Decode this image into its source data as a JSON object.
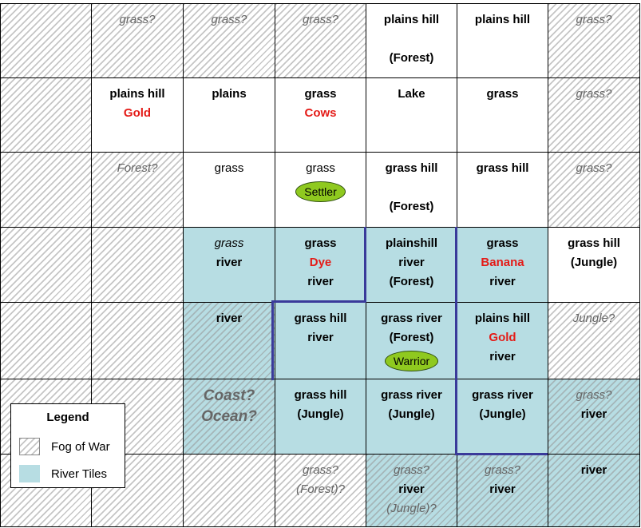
{
  "colors": {
    "river": "#b7dde3",
    "river_edge": "#3a3a9a",
    "resource": "#e41b17",
    "unit": "#8fc91f"
  },
  "grid": {
    "rows": [
      [
        {
          "fog": true,
          "river": false,
          "lines": []
        },
        {
          "fog": true,
          "river": false,
          "lines": [
            {
              "t": "grass?",
              "s": "fog"
            }
          ]
        },
        {
          "fog": true,
          "river": false,
          "lines": [
            {
              "t": "grass?",
              "s": "fog"
            }
          ]
        },
        {
          "fog": true,
          "river": false,
          "lines": [
            {
              "t": "grass?",
              "s": "fog"
            }
          ]
        },
        {
          "fog": false,
          "river": false,
          "lines": [
            {
              "t": "plains hill",
              "s": "b"
            },
            {
              "t": "",
              "s": "gap"
            },
            {
              "t": "(Forest)",
              "s": "b"
            }
          ]
        },
        {
          "fog": false,
          "river": false,
          "lines": [
            {
              "t": "plains hill",
              "s": "b"
            }
          ]
        },
        {
          "fog": true,
          "river": false,
          "lines": [
            {
              "t": "grass?",
              "s": "fog"
            }
          ]
        }
      ],
      [
        {
          "fog": true,
          "river": false,
          "lines": []
        },
        {
          "fog": false,
          "river": false,
          "lines": [
            {
              "t": "plains hill",
              "s": "b"
            },
            {
              "t": "Gold",
              "s": "red"
            }
          ]
        },
        {
          "fog": false,
          "river": false,
          "lines": [
            {
              "t": "plains",
              "s": "b"
            }
          ]
        },
        {
          "fog": false,
          "river": false,
          "lines": [
            {
              "t": "grass",
              "s": "b"
            },
            {
              "t": "Cows",
              "s": "red"
            }
          ]
        },
        {
          "fog": false,
          "river": false,
          "lines": [
            {
              "t": "Lake",
              "s": "b"
            }
          ]
        },
        {
          "fog": false,
          "river": false,
          "lines": [
            {
              "t": "grass",
              "s": "b"
            }
          ]
        },
        {
          "fog": true,
          "river": false,
          "lines": [
            {
              "t": "grass?",
              "s": "fog"
            }
          ]
        }
      ],
      [
        {
          "fog": true,
          "river": false,
          "lines": []
        },
        {
          "fog": true,
          "river": false,
          "lines": [
            {
              "t": "Forest?",
              "s": "fog"
            }
          ]
        },
        {
          "fog": false,
          "river": false,
          "lines": [
            {
              "t": "grass",
              "s": "n"
            }
          ]
        },
        {
          "fog": false,
          "river": false,
          "lines": [
            {
              "t": "grass",
              "s": "n"
            }
          ],
          "unit": "Settler"
        },
        {
          "fog": false,
          "river": false,
          "lines": [
            {
              "t": "grass hill",
              "s": "b"
            },
            {
              "t": "",
              "s": "gap"
            },
            {
              "t": "(Forest)",
              "s": "b"
            }
          ]
        },
        {
          "fog": false,
          "river": false,
          "lines": [
            {
              "t": "grass hill",
              "s": "b"
            }
          ]
        },
        {
          "fog": true,
          "river": false,
          "lines": [
            {
              "t": "grass?",
              "s": "fog"
            }
          ]
        }
      ],
      [
        {
          "fog": true,
          "river": false,
          "lines": []
        },
        {
          "fog": true,
          "river": false,
          "lines": []
        },
        {
          "fog": false,
          "river": true,
          "lines": [
            {
              "t": "grass",
              "s": "i"
            },
            {
              "t": "river",
              "s": "b"
            }
          ]
        },
        {
          "fog": false,
          "river": true,
          "lines": [
            {
              "t": "grass",
              "s": "b"
            },
            {
              "t": "Dye",
              "s": "red"
            },
            {
              "t": "river",
              "s": "b"
            }
          ]
        },
        {
          "fog": false,
          "river": true,
          "lines": [
            {
              "t": "plainshill",
              "s": "b"
            },
            {
              "t": "river",
              "s": "b"
            },
            {
              "t": "(Forest)",
              "s": "b"
            }
          ]
        },
        {
          "fog": false,
          "river": true,
          "lines": [
            {
              "t": "grass",
              "s": "b"
            },
            {
              "t": "Banana",
              "s": "red"
            },
            {
              "t": "river",
              "s": "b"
            }
          ]
        },
        {
          "fog": false,
          "river": false,
          "lines": [
            {
              "t": "grass hill",
              "s": "b"
            },
            {
              "t": "(Jungle)",
              "s": "b"
            }
          ]
        }
      ],
      [
        {
          "fog": true,
          "river": false,
          "lines": []
        },
        {
          "fog": true,
          "river": false,
          "lines": []
        },
        {
          "fog": true,
          "river": true,
          "lines": [
            {
              "t": "river",
              "s": "b"
            }
          ]
        },
        {
          "fog": false,
          "river": true,
          "lines": [
            {
              "t": "grass hill",
              "s": "b"
            },
            {
              "t": "river",
              "s": "b"
            }
          ]
        },
        {
          "fog": false,
          "river": true,
          "lines": [
            {
              "t": "grass river",
              "s": "b"
            },
            {
              "t": "(Forest)",
              "s": "b"
            }
          ],
          "unit": "Warrior"
        },
        {
          "fog": false,
          "river": true,
          "lines": [
            {
              "t": "plains hill",
              "s": "b"
            },
            {
              "t": "Gold",
              "s": "red"
            },
            {
              "t": "river",
              "s": "b"
            }
          ]
        },
        {
          "fog": true,
          "river": false,
          "lines": [
            {
              "t": "Jungle?",
              "s": "fog"
            }
          ]
        }
      ],
      [
        {
          "fog": true,
          "river": false,
          "lines": []
        },
        {
          "fog": true,
          "river": false,
          "lines": []
        },
        {
          "fog": true,
          "river": true,
          "lines": [
            {
              "t": "Coast?",
              "s": "big"
            },
            {
              "t": "Ocean?",
              "s": "big"
            }
          ]
        },
        {
          "fog": false,
          "river": true,
          "lines": [
            {
              "t": "grass hill",
              "s": "b"
            },
            {
              "t": "(Jungle)",
              "s": "b"
            }
          ]
        },
        {
          "fog": false,
          "river": true,
          "lines": [
            {
              "t": "grass river",
              "s": "b"
            },
            {
              "t": "(Jungle)",
              "s": "b"
            }
          ]
        },
        {
          "fog": false,
          "river": true,
          "lines": [
            {
              "t": "grass river",
              "s": "b"
            },
            {
              "t": "(Jungle)",
              "s": "b"
            }
          ]
        },
        {
          "fog": true,
          "river": true,
          "lines": [
            {
              "t": "grass?",
              "s": "fog"
            },
            {
              "t": "river",
              "s": "b"
            }
          ]
        }
      ],
      [
        {
          "fog": true,
          "river": false,
          "lines": []
        },
        {
          "fog": true,
          "river": false,
          "lines": []
        },
        {
          "fog": true,
          "river": false,
          "lines": []
        },
        {
          "fog": true,
          "river": false,
          "lines": [
            {
              "t": "grass?",
              "s": "fog"
            },
            {
              "t": "(Forest)?",
              "s": "fog"
            }
          ]
        },
        {
          "fog": true,
          "river": true,
          "lines": [
            {
              "t": "grass?",
              "s": "fog"
            },
            {
              "t": "river",
              "s": "b"
            },
            {
              "t": "(Jungle)?",
              "s": "fog"
            }
          ]
        },
        {
          "fog": true,
          "river": true,
          "lines": [
            {
              "t": "grass?",
              "s": "fog"
            },
            {
              "t": "river",
              "s": "b"
            }
          ]
        },
        {
          "fog": true,
          "river": true,
          "lines": [
            {
              "t": "river",
              "s": "b"
            }
          ]
        }
      ]
    ]
  },
  "legend": {
    "title": "Legend",
    "items": [
      {
        "label": "Fog of War",
        "kind": "fog"
      },
      {
        "label": "River Tiles",
        "kind": "river"
      }
    ]
  }
}
